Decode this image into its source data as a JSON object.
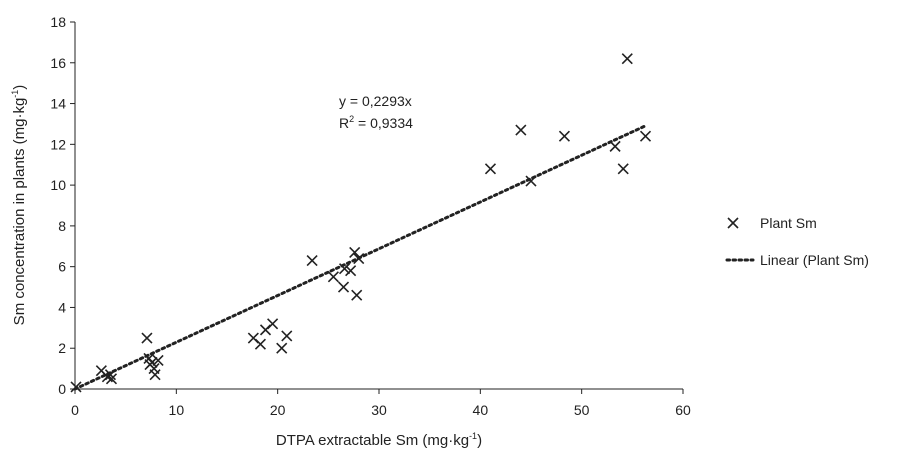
{
  "chart_data": {
    "type": "scatter",
    "title": "",
    "xlabel": "DTPA extractable Sm (mg·kg",
    "xlabel_sup": "-1",
    "xlabel_tail": ")",
    "ylabel": "Sm concentration in plants (mg·kg",
    "ylabel_sup": "-1",
    "ylabel_tail": ")",
    "xlim": [
      0,
      60
    ],
    "ylim": [
      0,
      18
    ],
    "x_ticks": [
      0,
      10,
      20,
      30,
      40,
      50,
      60
    ],
    "y_ticks": [
      0,
      2,
      4,
      6,
      8,
      10,
      12,
      14,
      16,
      18
    ],
    "x_tick_labels": [
      "0",
      "10",
      "20",
      "30",
      "40",
      "50",
      "60"
    ],
    "y_tick_labels": [
      "0",
      "2",
      "4",
      "6",
      "8",
      "10",
      "12",
      "14",
      "16",
      "18"
    ],
    "grid": false,
    "legend_position": "right",
    "series": [
      {
        "name": "Plant Sm",
        "marker": "x",
        "color": "#222222",
        "points": [
          {
            "x": 0.1,
            "y": 0.1
          },
          {
            "x": 2.6,
            "y": 0.9
          },
          {
            "x": 3.2,
            "y": 0.6
          },
          {
            "x": 3.5,
            "y": 0.7
          },
          {
            "x": 3.6,
            "y": 0.5
          },
          {
            "x": 7.1,
            "y": 2.5
          },
          {
            "x": 7.3,
            "y": 1.5
          },
          {
            "x": 7.4,
            "y": 1.2
          },
          {
            "x": 7.6,
            "y": 1.3
          },
          {
            "x": 7.8,
            "y": 1.0
          },
          {
            "x": 7.9,
            "y": 0.7
          },
          {
            "x": 8.2,
            "y": 1.4
          },
          {
            "x": 17.6,
            "y": 2.5
          },
          {
            "x": 18.3,
            "y": 2.2
          },
          {
            "x": 18.8,
            "y": 2.9
          },
          {
            "x": 19.5,
            "y": 3.2
          },
          {
            "x": 20.4,
            "y": 2.0
          },
          {
            "x": 20.9,
            "y": 2.6
          },
          {
            "x": 23.4,
            "y": 6.3
          },
          {
            "x": 25.5,
            "y": 5.5
          },
          {
            "x": 26.5,
            "y": 5.0
          },
          {
            "x": 26.6,
            "y": 5.9
          },
          {
            "x": 27.2,
            "y": 5.8
          },
          {
            "x": 27.6,
            "y": 6.7
          },
          {
            "x": 27.8,
            "y": 4.6
          },
          {
            "x": 28.0,
            "y": 6.4
          },
          {
            "x": 41.0,
            "y": 10.8
          },
          {
            "x": 44.0,
            "y": 12.7
          },
          {
            "x": 45.0,
            "y": 10.2
          },
          {
            "x": 48.3,
            "y": 12.4
          },
          {
            "x": 53.3,
            "y": 11.9
          },
          {
            "x": 54.1,
            "y": 10.8
          },
          {
            "x": 54.5,
            "y": 16.2
          },
          {
            "x": 56.3,
            "y": 12.4
          }
        ]
      },
      {
        "name": "Linear (Plant Sm)",
        "type": "trendline",
        "style": "dotted",
        "color": "#222222",
        "slope": 0.2293,
        "x_range": [
          0,
          56.3
        ]
      }
    ],
    "annotations": {
      "equation": "y = 0,2293x",
      "r2_prefix": "R",
      "r2_sup": "2",
      "r2_value": " = 0,9334"
    }
  }
}
